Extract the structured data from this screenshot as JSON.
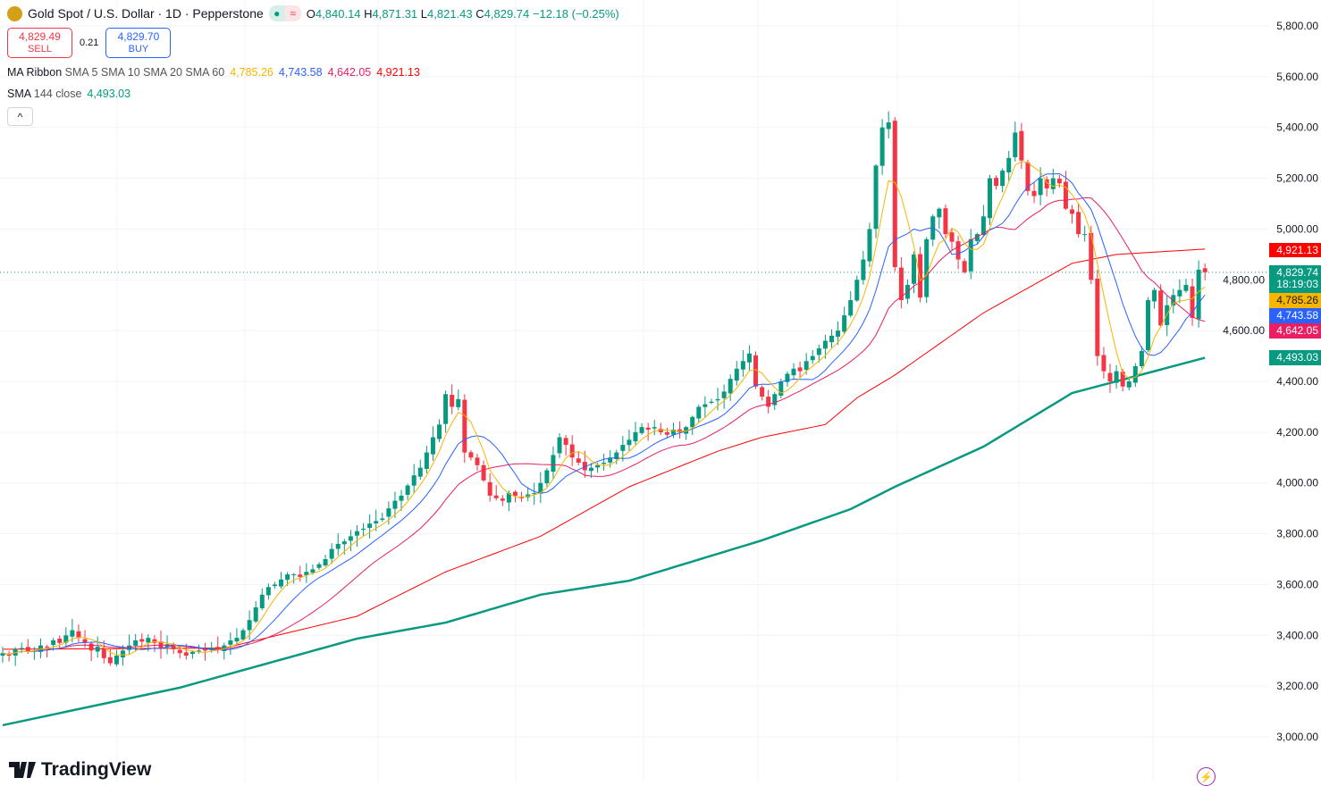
{
  "header": {
    "symbol": "Gold Spot / U.S. Dollar · 1D · Pepperstone",
    "o_label": "O",
    "open": "4,840.14",
    "h_label": "H",
    "high": "4,871.31",
    "l_label": "L",
    "low": "4,821.43",
    "c_label": "C",
    "close": "4,829.74",
    "change": "−12.18 (−0.25%)"
  },
  "trade": {
    "sell_price": "4,829.49",
    "sell_label": "SELL",
    "spread": "0.21",
    "buy_price": "4,829.70",
    "buy_label": "BUY"
  },
  "indicators": {
    "ribbon_name": "MA Ribbon",
    "ribbon_params": "SMA 5 SMA 10 SMA 20 SMA 60",
    "ribbon_values": [
      "4,785.26",
      "4,743.58",
      "4,642.05",
      "4,921.13"
    ],
    "sma_name": "SMA",
    "sma_params": "144 close",
    "sma_value": "4,493.03"
  },
  "collapse_icon": "^",
  "branding": "TradingView",
  "colors": {
    "up": "#089981",
    "down": "#f23645",
    "sma5": "#f7b500",
    "sma10": "#2962ff",
    "sma20": "#e91e63",
    "sma60": "#ff0000",
    "sma144": "#089981"
  },
  "chart_data": {
    "type": "candlestick",
    "title": "Gold Spot / U.S. Dollar · 1D · Pepperstone",
    "ylim": [
      2900,
      5900
    ],
    "yticks": [
      5800,
      5600,
      5400,
      5200,
      5000,
      4800,
      4600,
      4400,
      4200,
      4000,
      3800,
      3600,
      3400,
      3200,
      3000
    ],
    "ytick_labels": [
      "5,800.00",
      "5,600.00",
      "5,400.00",
      "5,200.00",
      "5,000.00",
      "4,800.00",
      "4,600.00",
      "4,400.00",
      "4,200.00",
      "4,000.00",
      "3,800.00",
      "3,600.00",
      "3,400.00",
      "3,200.00",
      "3,000.00"
    ],
    "closes": [
      3330,
      3320,
      3345,
      3350,
      3335,
      3340,
      3360,
      3355,
      3380,
      3370,
      3400,
      3420,
      3390,
      3370,
      3340,
      3355,
      3310,
      3290,
      3320,
      3340,
      3360,
      3380,
      3375,
      3390,
      3370,
      3350,
      3365,
      3345,
      3330,
      3320,
      3335,
      3340,
      3340,
      3350,
      3345,
      3360,
      3380,
      3390,
      3420,
      3460,
      3510,
      3560,
      3590,
      3600,
      3620,
      3640,
      3640,
      3630,
      3650,
      3660,
      3680,
      3700,
      3740,
      3760,
      3770,
      3790,
      3810,
      3820,
      3840,
      3850,
      3860,
      3900,
      3930,
      3950,
      3990,
      4030,
      4060,
      4120,
      4180,
      4230,
      4350,
      4300,
      4330,
      4120,
      4100,
      4070,
      4010,
      3950,
      3940,
      3930,
      3960,
      3950,
      3940,
      3955,
      3960,
      4000,
      4050,
      4110,
      4180,
      4150,
      4100,
      4080,
      4050,
      4060,
      4070,
      4080,
      4100,
      4120,
      4150,
      4170,
      4200,
      4220,
      4210,
      4220,
      4200,
      4190,
      4210,
      4200,
      4220,
      4260,
      4300,
      4310,
      4320,
      4330,
      4360,
      4410,
      4450,
      4480,
      4510,
      4380,
      4340,
      4300,
      4350,
      4400,
      4430,
      4450,
      4440,
      4480,
      4500,
      4530,
      4560,
      4580,
      4600,
      4660,
      4720,
      4800,
      4880,
      5000,
      5250,
      5400,
      5420,
      4850,
      4720,
      4780,
      4900,
      4730,
      4960,
      5050,
      5080,
      4980,
      4950,
      4880,
      4830,
      4960,
      4980,
      5050,
      5200,
      5170,
      5230,
      5280,
      5380,
      5270,
      5150,
      5130,
      5200,
      5160,
      5200,
      5180,
      5080,
      5060,
      4980,
      4980,
      4800,
      4500,
      4440,
      4400,
      4440,
      4380,
      4400,
      4460,
      4520,
      4720,
      4760,
      4620,
      4700,
      4740,
      4760,
      4780,
      4650,
      4840,
      4829.74
    ],
    "sma60_points": [
      [
        0,
        3345
      ],
      [
        35,
        3350
      ],
      [
        56,
        3475
      ],
      [
        70,
        3650
      ],
      [
        85,
        3790
      ],
      [
        99,
        3985
      ],
      [
        113,
        4125
      ],
      [
        120,
        4180
      ],
      [
        130,
        4230
      ],
      [
        135,
        4335
      ],
      [
        141,
        4425
      ],
      [
        155,
        4670
      ],
      [
        169,
        4865
      ],
      [
        176,
        4900
      ],
      [
        190,
        4921.13
      ]
    ],
    "sma144_points": [
      [
        0,
        3046
      ],
      [
        28,
        3194
      ],
      [
        56,
        3387
      ],
      [
        70,
        3450
      ],
      [
        85,
        3560
      ],
      [
        99,
        3615
      ],
      [
        120,
        3774
      ],
      [
        134,
        3897
      ],
      [
        141,
        3985
      ],
      [
        155,
        4143
      ],
      [
        169,
        4354
      ],
      [
        190,
        4493.03
      ]
    ],
    "last_price": "4,829.74",
    "countdown": "18:19:03",
    "price_tags": {
      "sma60": "4,921.13",
      "sma5": "4,785.26",
      "sma10": "4,743.58",
      "sma20": "4,642.05",
      "sma144": "4,493.03"
    }
  }
}
